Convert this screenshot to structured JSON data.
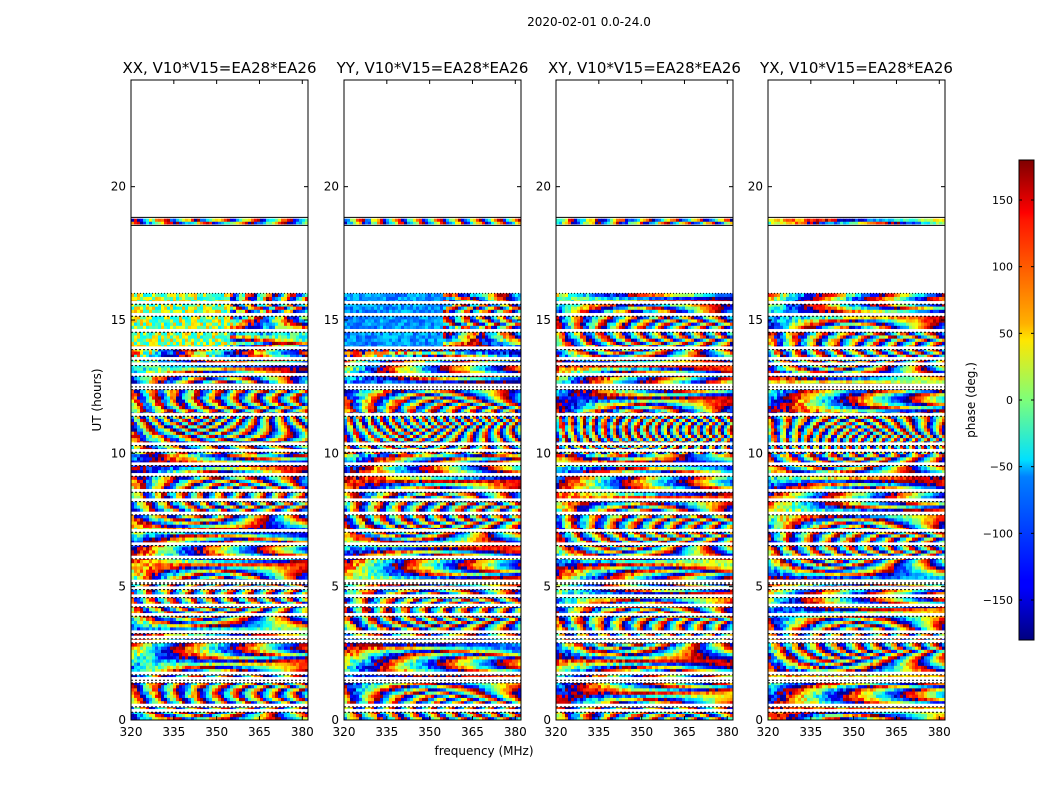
{
  "figure": {
    "suptitle": "2020-02-01 0.0-24.0"
  },
  "chart_data": {
    "type": "heatmap",
    "description_cmap": "jet",
    "xlabel": "frequency (MHz)",
    "ylabel": "UT (hours)",
    "xlim": [
      320,
      382
    ],
    "ylim": [
      0,
      24
    ],
    "xticks": [
      320,
      335,
      350,
      365,
      380
    ],
    "yticks": [
      0,
      5,
      10,
      15,
      20
    ],
    "data_hour_ranges": [
      [
        0.0,
        16.0
      ],
      [
        18.6,
        18.8
      ]
    ],
    "panels": [
      {
        "title": "XX, V10*V15=EA28*EA26"
      },
      {
        "title": "YY, V10*V15=EA28*EA26"
      },
      {
        "title": "XY, V10*V15=EA28*EA26"
      },
      {
        "title": "YX, V10*V15=EA28*EA26"
      }
    ],
    "colorbar": {
      "label": "phase (deg.)",
      "range": [
        -180,
        180
      ],
      "ticks": [
        -150,
        -100,
        -50,
        0,
        50,
        100,
        150
      ],
      "tick_labels": [
        "−150",
        "−100",
        "−50",
        "0",
        "50",
        "100",
        "150"
      ]
    }
  }
}
